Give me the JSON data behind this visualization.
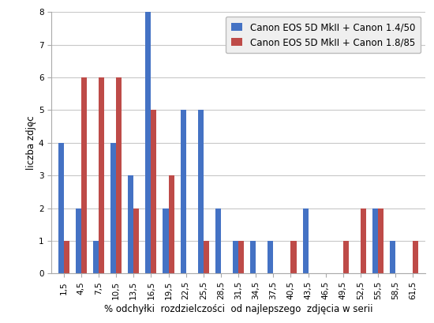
{
  "categories": [
    "1,5",
    "4,5",
    "7,5",
    "10,5",
    "13,5",
    "16,5",
    "19,5",
    "22,5",
    "25,5",
    "28,5",
    "31,5",
    "34,5",
    "37,5",
    "40,5",
    "43,5",
    "46,5",
    "49,5",
    "52,5",
    "55,5",
    "58,5",
    "61,5"
  ],
  "series1_label": "Canon EOS 5D MkII + Canon 1.4/50",
  "series2_label": "Canon EOS 5D MkII + Canon 1.8/85",
  "series1_values": [
    4,
    2,
    1,
    4,
    3,
    8,
    2,
    5,
    5,
    2,
    1,
    1,
    1,
    0,
    2,
    0,
    0,
    0,
    2,
    1,
    0
  ],
  "series2_values": [
    1,
    6,
    6,
    6,
    2,
    5,
    3,
    0,
    1,
    0,
    1,
    0,
    0,
    1,
    0,
    0,
    1,
    2,
    2,
    0,
    1
  ],
  "series1_color": "#4472C4",
  "series2_color": "#BE4B48",
  "xlabel": "% odchyłki  rozdzielczości  od najlepszego  zdjęcia w serii",
  "ylabel": "liczba zdjęc",
  "ylim": [
    0,
    8
  ],
  "yticks": [
    0,
    1,
    2,
    3,
    4,
    5,
    6,
    7,
    8
  ],
  "background_color": "#FFFFFF",
  "grid_color": "#C8C8C8",
  "legend_fontsize": 8.5,
  "axis_label_fontsize": 8.5,
  "tick_fontsize": 7.5,
  "bar_width": 0.32,
  "figsize": [
    5.5,
    4.09
  ],
  "dpi": 100
}
